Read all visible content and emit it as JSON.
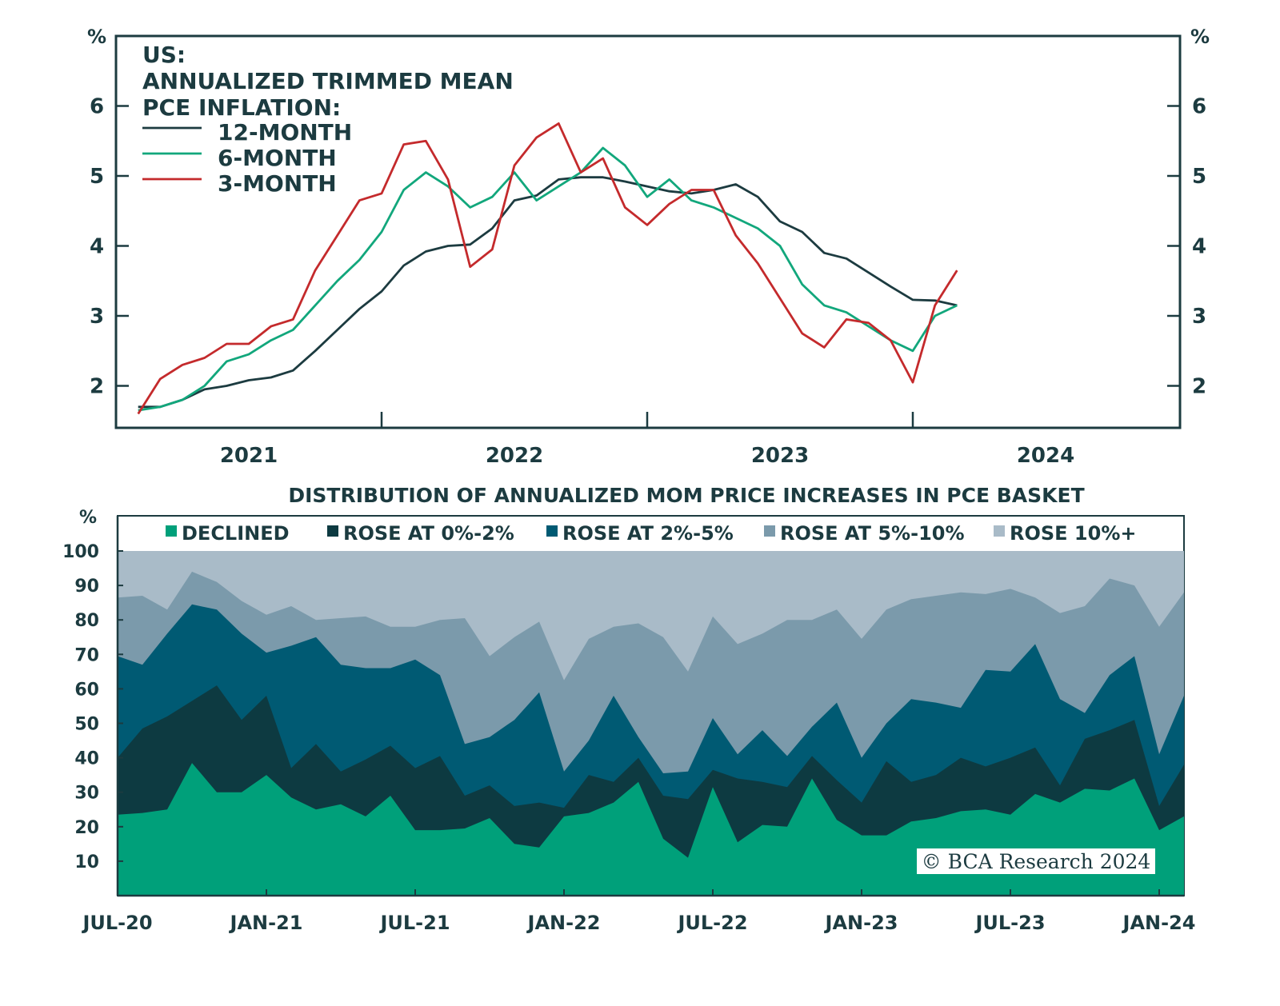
{
  "colors": {
    "axis": "#1c3b40",
    "line_12m": "#1c3b40",
    "line_6m": "#12a77c",
    "line_3m": "#c42a2c",
    "declined": "#00a07a",
    "rose_0_2": "#0d3a41",
    "rose_2_5": "#005a73",
    "rose_5_10": "#7b9aab",
    "rose_10_plus": "#a9bbc8"
  },
  "chart_data": [
    {
      "type": "line",
      "title": [
        "US:",
        "ANNUALIZED TRIMMED MEAN",
        "PCE INFLATION:"
      ],
      "ylabel": "%",
      "ylabel_right": "%",
      "ylim": [
        1.4,
        7.0
      ],
      "yticks": [
        2,
        3,
        4,
        5,
        6
      ],
      "xticks": [
        "2021",
        "2022",
        "2023",
        "2024"
      ],
      "x_start": "2021-01",
      "x_end": "2024-02",
      "legend_position": "top-left",
      "series": [
        {
          "name": "12-MONTH",
          "color_key": "line_12m",
          "values": [
            1.7,
            1.7,
            1.8,
            1.95,
            2.0,
            2.08,
            2.12,
            2.22,
            2.5,
            2.8,
            3.1,
            3.35,
            3.72,
            3.92,
            4.0,
            4.02,
            4.25,
            4.65,
            4.72,
            4.95,
            4.98,
            4.98,
            4.92,
            4.85,
            4.78,
            4.75,
            4.8,
            4.88,
            4.7,
            4.35,
            4.2,
            3.9,
            3.82,
            3.62,
            3.42,
            3.23,
            3.22,
            3.15
          ]
        },
        {
          "name": "6-MONTH",
          "color_key": "line_6m",
          "values": [
            1.65,
            1.7,
            1.8,
            2.0,
            2.35,
            2.45,
            2.65,
            2.8,
            3.15,
            3.5,
            3.8,
            4.2,
            4.8,
            5.05,
            4.85,
            4.55,
            4.7,
            5.05,
            4.65,
            4.85,
            5.05,
            5.4,
            5.15,
            4.7,
            4.95,
            4.65,
            4.55,
            4.4,
            4.25,
            4.0,
            3.45,
            3.15,
            3.05,
            2.85,
            2.65,
            2.5,
            3.0,
            3.15
          ]
        },
        {
          "name": "3-MONTH",
          "color_key": "line_3m",
          "values": [
            1.6,
            2.1,
            2.3,
            2.4,
            2.6,
            2.6,
            2.85,
            2.95,
            3.65,
            4.15,
            4.65,
            4.75,
            5.45,
            5.5,
            4.95,
            3.7,
            3.95,
            5.15,
            5.55,
            5.75,
            5.05,
            5.25,
            4.55,
            4.3,
            4.6,
            4.8,
            4.8,
            4.15,
            3.75,
            3.25,
            2.75,
            2.55,
            2.95,
            2.9,
            2.65,
            2.05,
            3.15,
            3.65
          ]
        }
      ]
    },
    {
      "type": "area",
      "stacked": true,
      "title": "DISTRIBUTION OF ANNUALIZED MOM PRICE INCREASES IN PCE BASKET",
      "ylabel": "%",
      "ylim": [
        0,
        100
      ],
      "yticks": [
        10,
        20,
        30,
        40,
        50,
        60,
        70,
        80,
        90,
        100
      ],
      "xticks": [
        "JUL-20",
        "JAN-21",
        "JUL-21",
        "JAN-22",
        "JUL-22",
        "JAN-23",
        "JUL-23",
        "JAN-24"
      ],
      "x_start": "2020-07",
      "x_end": "2024-02",
      "legend_position": "top",
      "cumulative_note": "values are cumulative upper bounds of each band; ROSE 10%+ fills to 100",
      "series": [
        {
          "name": "DECLINED",
          "color_key": "declined",
          "cumulative": [
            23.5,
            24,
            25,
            38.5,
            30,
            30,
            35,
            28.5,
            25,
            26.5,
            23,
            29,
            19,
            19,
            19.5,
            22.5,
            15,
            14,
            23,
            24,
            27,
            33,
            16.5,
            11,
            31.5,
            15.5,
            20.5,
            20,
            34,
            22,
            17.5,
            17.5,
            21.5,
            22.5,
            24.5,
            25,
            23.5,
            29.5,
            27,
            31,
            30.5,
            34,
            19,
            23
          ]
        },
        {
          "name": "ROSE AT 0%-2%",
          "color_key": "rose_0_2",
          "cumulative": [
            40,
            48.5,
            52,
            56.5,
            61,
            51,
            58,
            37,
            44,
            36,
            39.5,
            43.5,
            37,
            40.5,
            29,
            32,
            26,
            27,
            25.5,
            35,
            33,
            40,
            29,
            28,
            36.5,
            34,
            33,
            31.5,
            40.5,
            33.5,
            27,
            39,
            33,
            35,
            40,
            37.5,
            40,
            43,
            32,
            45.5,
            48,
            51,
            26,
            38
          ]
        },
        {
          "name": "ROSE AT 2%-5%",
          "color_key": "rose_2_5",
          "cumulative": [
            69.5,
            67,
            76,
            84.5,
            83,
            76,
            70.5,
            72.5,
            75,
            67,
            66,
            66,
            68.5,
            64,
            44,
            46,
            51,
            59,
            36,
            45,
            58,
            46,
            35.5,
            36,
            51.5,
            41,
            48,
            40.5,
            49,
            56,
            40,
            50,
            57,
            56,
            54.5,
            65.5,
            65,
            73,
            57,
            53,
            64,
            69.5,
            41,
            58
          ]
        },
        {
          "name": "ROSE AT 5%-10%",
          "color_key": "rose_5_10",
          "cumulative": [
            86.5,
            87,
            83,
            94,
            91,
            85.5,
            81.5,
            84,
            80,
            80.5,
            81,
            78,
            78,
            80,
            80.5,
            69.5,
            75,
            79.5,
            62.5,
            74.5,
            78,
            79,
            75,
            65,
            81,
            73,
            76,
            80,
            80,
            83,
            74.5,
            83,
            86,
            87,
            88,
            87.5,
            89,
            86.5,
            82,
            84,
            92,
            90,
            78,
            88
          ]
        },
        {
          "name": "ROSE 10%+",
          "color_key": "rose_10_plus",
          "cumulative_top": 100
        }
      ]
    }
  ],
  "copyright": "© BCA Research 2024"
}
